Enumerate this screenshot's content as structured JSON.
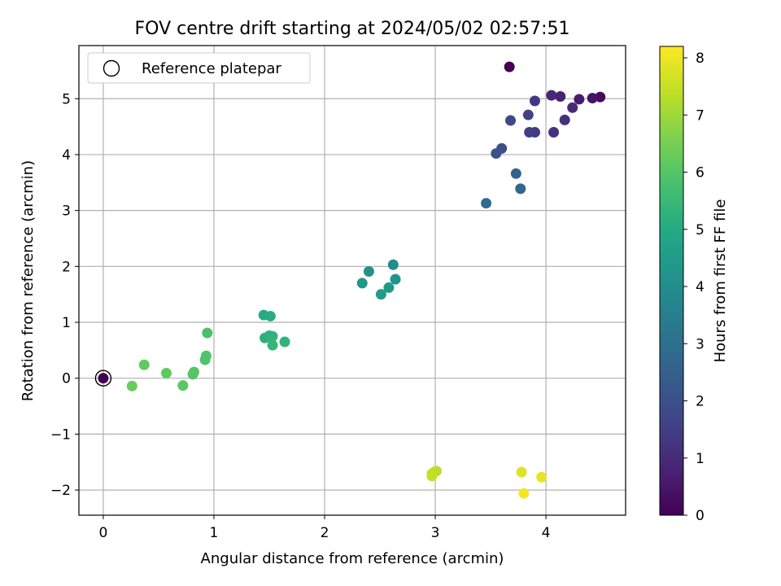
{
  "chart_data": {
    "type": "scatter",
    "title": "FOV centre drift starting at 2024/05/02 02:57:51",
    "xlabel": "Angular distance from reference (arcmin)",
    "ylabel": "Rotation from reference (arcmin)",
    "xlim": [
      -0.22,
      4.72
    ],
    "ylim": [
      -2.45,
      5.95
    ],
    "xticks": [
      0,
      1,
      2,
      3,
      4
    ],
    "xtick_labels": [
      "0",
      "1",
      "2",
      "3",
      "4"
    ],
    "yticks": [
      -2,
      -1,
      0,
      1,
      2,
      3,
      4,
      5
    ],
    "ytick_labels": [
      "−2",
      "−1",
      "0",
      "1",
      "2",
      "3",
      "4",
      "5"
    ],
    "grid": true,
    "legend": {
      "position": "top-left",
      "entries": [
        "Reference platepar"
      ]
    },
    "reference_point": {
      "x": 0,
      "y": 0,
      "label": "Reference platepar"
    },
    "colorbar": {
      "label": "Hours from first FF file",
      "range": [
        0,
        8.2
      ],
      "colormap": "viridis",
      "ticks": [
        0,
        1,
        2,
        3,
        4,
        5,
        6,
        7,
        8
      ],
      "tick_labels": [
        "0",
        "1",
        "2",
        "3",
        "4",
        "5",
        "6",
        "7",
        "8"
      ]
    },
    "points": [
      {
        "x": 0.0,
        "y": 0.0,
        "c": 0.0
      },
      {
        "x": 3.67,
        "y": 5.57,
        "c": 0.0
      },
      {
        "x": 4.49,
        "y": 5.03,
        "c": 0.2
      },
      {
        "x": 4.42,
        "y": 5.01,
        "c": 0.4
      },
      {
        "x": 4.3,
        "y": 4.99,
        "c": 0.6
      },
      {
        "x": 4.13,
        "y": 5.04,
        "c": 0.8
      },
      {
        "x": 4.05,
        "y": 5.06,
        "c": 0.9
      },
      {
        "x": 4.24,
        "y": 4.84,
        "c": 1.0
      },
      {
        "x": 4.17,
        "y": 4.62,
        "c": 1.1
      },
      {
        "x": 4.07,
        "y": 4.4,
        "c": 1.2
      },
      {
        "x": 3.9,
        "y": 4.96,
        "c": 1.3
      },
      {
        "x": 3.9,
        "y": 4.4,
        "c": 1.4
      },
      {
        "x": 3.85,
        "y": 4.4,
        "c": 1.5
      },
      {
        "x": 3.84,
        "y": 4.71,
        "c": 1.6
      },
      {
        "x": 3.68,
        "y": 4.61,
        "c": 1.8
      },
      {
        "x": 3.6,
        "y": 4.11,
        "c": 1.9
      },
      {
        "x": 3.55,
        "y": 4.02,
        "c": 2.0
      },
      {
        "x": 3.73,
        "y": 3.66,
        "c": 2.5
      },
      {
        "x": 3.77,
        "y": 3.39,
        "c": 2.7
      },
      {
        "x": 3.46,
        "y": 3.13,
        "c": 2.9
      },
      {
        "x": 2.62,
        "y": 2.03,
        "c": 4.0
      },
      {
        "x": 2.4,
        "y": 1.91,
        "c": 4.1
      },
      {
        "x": 2.64,
        "y": 1.77,
        "c": 4.2
      },
      {
        "x": 2.34,
        "y": 1.7,
        "c": 4.3
      },
      {
        "x": 2.58,
        "y": 1.62,
        "c": 4.4
      },
      {
        "x": 2.51,
        "y": 1.5,
        "c": 4.5
      },
      {
        "x": 1.45,
        "y": 1.13,
        "c": 5.0
      },
      {
        "x": 1.51,
        "y": 1.11,
        "c": 5.1
      },
      {
        "x": 1.5,
        "y": 0.76,
        "c": 5.2
      },
      {
        "x": 1.46,
        "y": 0.72,
        "c": 5.2
      },
      {
        "x": 1.53,
        "y": 0.75,
        "c": 5.3
      },
      {
        "x": 1.64,
        "y": 0.65,
        "c": 5.3
      },
      {
        "x": 1.53,
        "y": 0.59,
        "c": 5.4
      },
      {
        "x": 0.94,
        "y": 0.81,
        "c": 5.8
      },
      {
        "x": 0.93,
        "y": 0.4,
        "c": 5.9
      },
      {
        "x": 0.92,
        "y": 0.33,
        "c": 5.9
      },
      {
        "x": 0.82,
        "y": 0.11,
        "c": 6.0
      },
      {
        "x": 0.81,
        "y": 0.07,
        "c": 6.0
      },
      {
        "x": 0.72,
        "y": -0.13,
        "c": 6.1
      },
      {
        "x": 0.57,
        "y": 0.09,
        "c": 6.2
      },
      {
        "x": 0.37,
        "y": 0.24,
        "c": 6.2
      },
      {
        "x": 0.26,
        "y": -0.14,
        "c": 6.3
      },
      {
        "x": 3.01,
        "y": -1.66,
        "c": 7.3
      },
      {
        "x": 2.99,
        "y": -1.68,
        "c": 7.35
      },
      {
        "x": 2.97,
        "y": -1.71,
        "c": 7.4
      },
      {
        "x": 2.97,
        "y": -1.75,
        "c": 7.45
      },
      {
        "x": 3.78,
        "y": -1.68,
        "c": 7.8
      },
      {
        "x": 3.96,
        "y": -1.77,
        "c": 7.9
      },
      {
        "x": 3.8,
        "y": -2.06,
        "c": 8.1
      }
    ]
  }
}
